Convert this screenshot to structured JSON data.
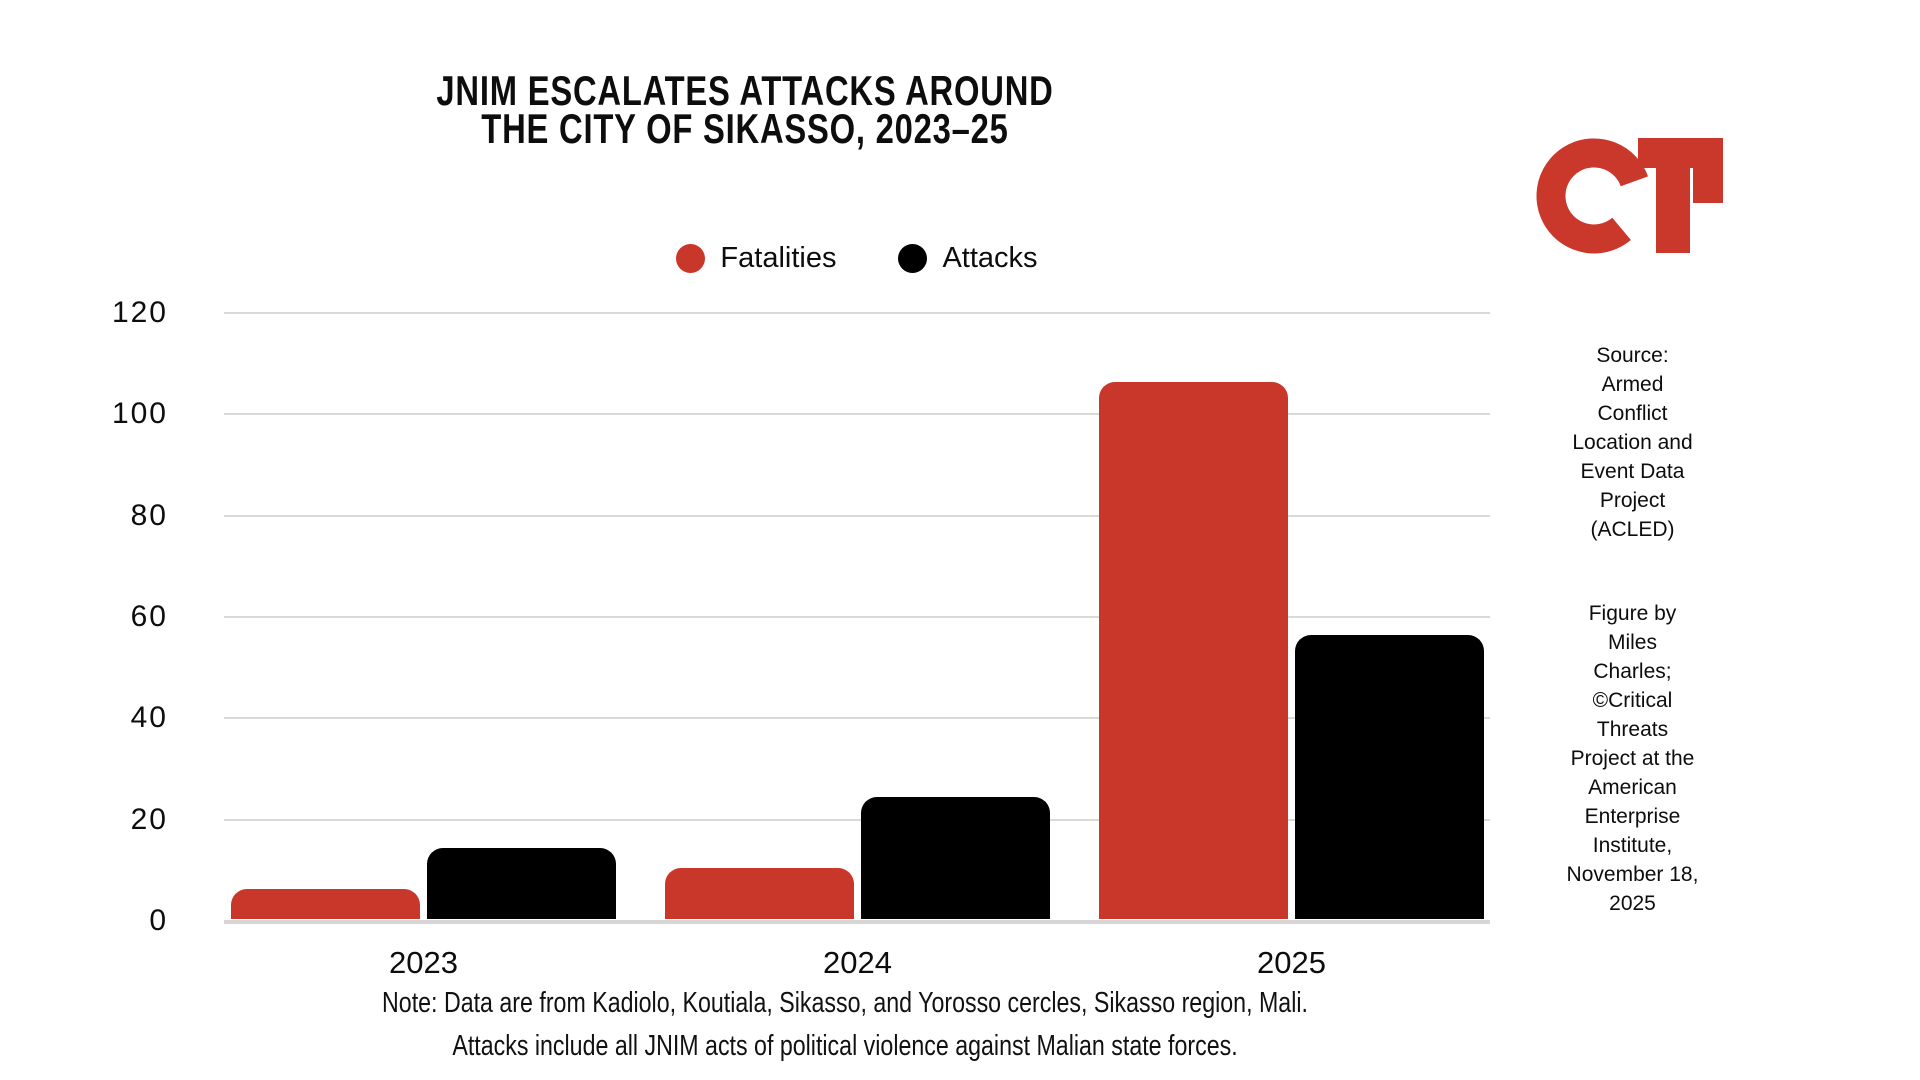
{
  "title": {
    "line1": "JNIM ESCALATES ATTACKS AROUND",
    "line2": "THE CITY OF SIKASSO, 2023–25"
  },
  "chart_data": {
    "type": "bar",
    "categories": [
      "2023",
      "2024",
      "2025"
    ],
    "series": [
      {
        "name": "Fatalities",
        "color": "#c9372b",
        "values": [
          6,
          10,
          106
        ]
      },
      {
        "name": "Attacks",
        "color": "#000000",
        "values": [
          14,
          24,
          56
        ]
      }
    ],
    "title": "JNIM ESCALATES ATTACKS AROUND THE CITY OF SIKASSO, 2023–25",
    "xlabel": "",
    "ylabel": "",
    "ylim": [
      0,
      120
    ],
    "yticks": [
      0,
      20,
      40,
      60,
      80,
      100,
      120
    ],
    "grid": true,
    "legend_position": "top",
    "bar_corner": "rounded-top"
  },
  "notes": {
    "line1": "Note: Data are from Kadiolo, Koutiala, Sikasso, and Yorosso cercles, Sikasso region, Mali.",
    "line2": "Attacks include all JNIM acts of political violence against Malian state forces."
  },
  "sidebar": {
    "source_lines": [
      "Source:",
      "Armed",
      "Conflict",
      "Location and",
      "Event Data",
      "Project",
      "(ACLED)"
    ],
    "credit_lines": [
      "Figure by",
      "Miles",
      "Charles;",
      "©Critical",
      "Threats",
      "Project at the",
      "American",
      "Enterprise",
      "Institute,",
      "November 18,",
      "2025"
    ]
  },
  "logo": {
    "name": "critical-threats-ct-logo",
    "color": "#c9382b"
  }
}
